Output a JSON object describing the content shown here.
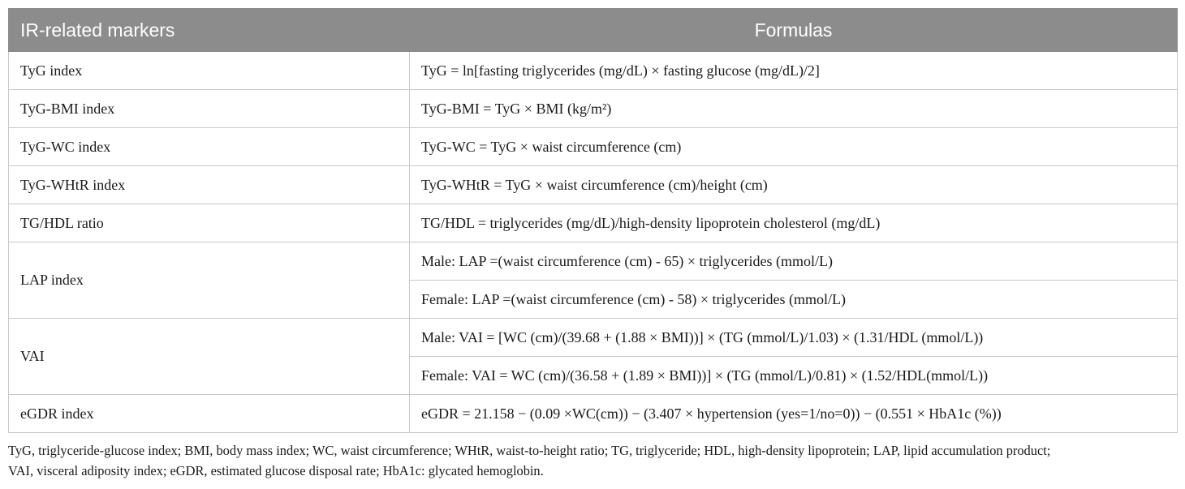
{
  "table": {
    "headers": [
      "IR-related markers",
      "Formulas"
    ],
    "rows": [
      {
        "marker": "TyG index",
        "formulas": [
          "TyG = ln[fasting triglycerides (mg/dL) × fasting glucose (mg/dL)/2]"
        ]
      },
      {
        "marker": "TyG-BMI index",
        "formulas": [
          "TyG-BMI = TyG × BMI (kg/m²)"
        ]
      },
      {
        "marker": "TyG-WC index",
        "formulas": [
          "TyG-WC = TyG × waist circumference (cm)"
        ]
      },
      {
        "marker": "TyG-WHtR index",
        "formulas": [
          "TyG-WHtR = TyG × waist circumference (cm)/height (cm)"
        ]
      },
      {
        "marker": "TG/HDL ratio",
        "formulas": [
          "TG/HDL = triglycerides (mg/dL)/high-density lipoprotein cholesterol (mg/dL)"
        ]
      },
      {
        "marker": "LAP index",
        "formulas": [
          "Male: LAP =(waist circumference (cm) - 65) × triglycerides (mmol/L)",
          "Female: LAP =(waist circumference (cm) - 58) × triglycerides (mmol/L)"
        ]
      },
      {
        "marker": "VAI",
        "formulas": [
          "Male: VAI = [WC (cm)/(39.68 + (1.88 × BMI))] × (TG (mmol/L)/1.03) × (1.31/HDL (mmol/L))",
          "Female: VAI = WC (cm)/(36.58 + (1.89 × BMI))] × (TG (mmol/L)/0.81) × (1.52/HDL(mmol/L))"
        ]
      },
      {
        "marker": "eGDR index",
        "formulas": [
          "eGDR = 21.158 − (0.09 ×WC(cm)) − (3.407 × hypertension (yes=1/no=0)) − (0.551 × HbA1c (%))"
        ]
      }
    ]
  },
  "footnote": {
    "line1": "TyG, triglyceride-glucose index; BMI, body mass index; WC, waist circumference; WHtR, waist-to-height ratio; TG, triglyceride; HDL, high-density lipoprotein; LAP, lipid accumulation product;",
    "line2": "VAI, visceral adiposity index; eGDR, estimated glucose disposal rate; HbA1c: glycated hemoglobin."
  }
}
